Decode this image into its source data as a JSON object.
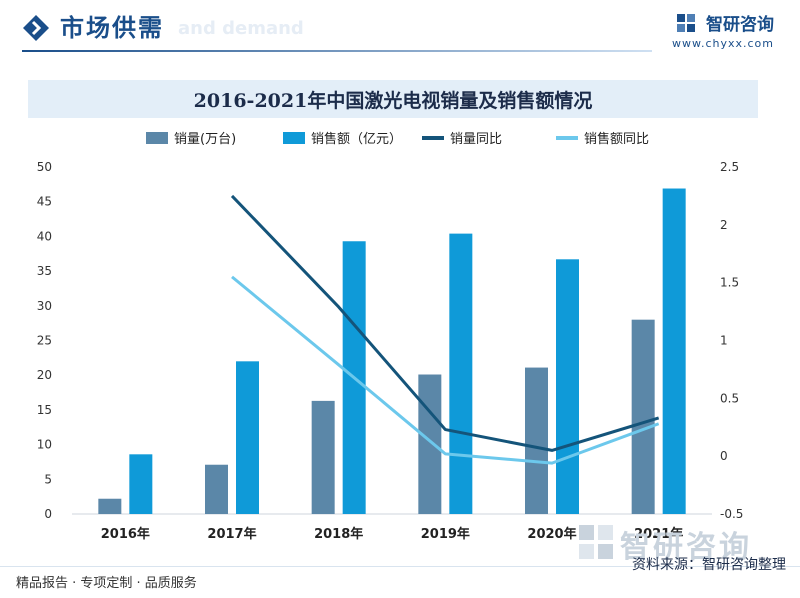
{
  "header": {
    "title": "市场供需",
    "ghost_text": "and demand",
    "brand_name": "智研咨询",
    "brand_url": "www.chyxx.com"
  },
  "chart_data": {
    "type": "bar",
    "title": "2016-2021年中国激光电视销量及销售额情况",
    "categories": [
      "2016年",
      "2017年",
      "2018年",
      "2019年",
      "2020年",
      "2021年"
    ],
    "series": [
      {
        "name": "销量(万台)",
        "type": "bar",
        "axis": "left",
        "color": "#5b87a8",
        "values": [
          2.2,
          7.1,
          16.3,
          20.1,
          21.1,
          28.0
        ]
      },
      {
        "name": "销售额（亿元）",
        "type": "bar",
        "axis": "left",
        "color": "#0f9ad8",
        "values": [
          8.6,
          22.0,
          39.3,
          40.4,
          36.7,
          46.9
        ]
      },
      {
        "name": "销量同比",
        "type": "line",
        "axis": "right",
        "color": "#14547a",
        "values": [
          null,
          2.25,
          1.29,
          0.23,
          0.05,
          0.33
        ]
      },
      {
        "name": "销售额同比",
        "type": "line",
        "axis": "right",
        "color": "#6cc8ec",
        "values": [
          null,
          1.55,
          0.79,
          0.02,
          -0.06,
          0.28
        ]
      }
    ],
    "y_left": {
      "min": 0,
      "max": 50,
      "ticks": [
        0,
        5,
        10,
        15,
        20,
        25,
        30,
        35,
        40,
        45,
        50
      ]
    },
    "y_right": {
      "min": -0.5,
      "max": 2.5,
      "ticks": [
        -0.5,
        0,
        0.5,
        1,
        1.5,
        2,
        2.5
      ],
      "tick_labels": [
        "-0.5",
        "0",
        "0.5",
        "1",
        "1.5",
        "2",
        "2.5"
      ]
    },
    "legend": "top-center",
    "grid": false
  },
  "footer": {
    "left": "精品报告 · 专项定制 · 品质服务",
    "right": "资料来源：智研咨询整理",
    "watermark": "智研咨询"
  },
  "colors": {
    "brand": "#1a4e8a",
    "title_bar": "#e3eef8"
  },
  "icons": {
    "header": "diamond-chevron-icon",
    "brand": "chyxx-logo-icon"
  }
}
